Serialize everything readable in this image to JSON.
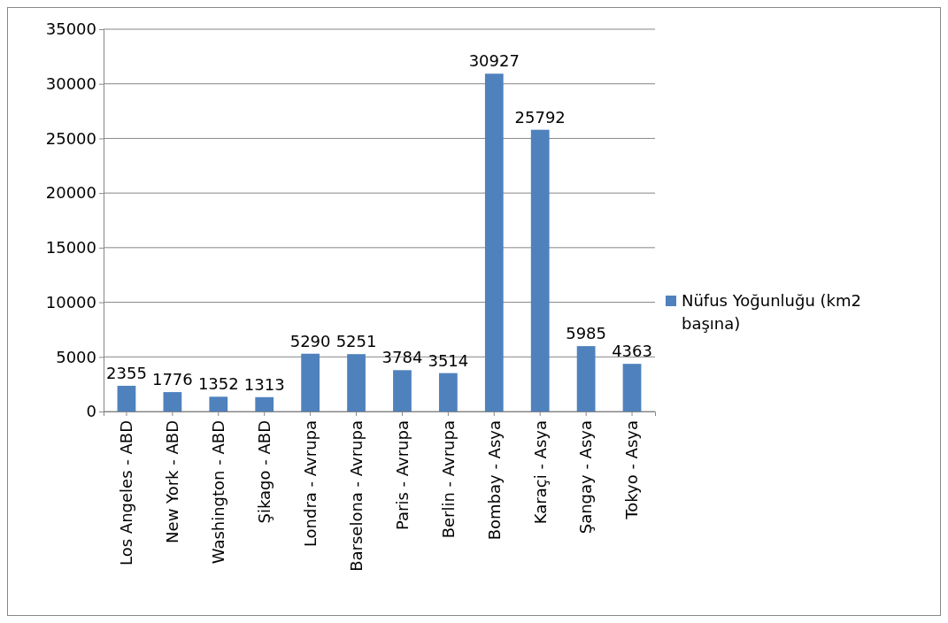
{
  "chart_data": {
    "type": "bar",
    "categories": [
      "Los Angeles - ABD",
      "New York - ABD",
      "Washington - ABD",
      "Şikago - ABD",
      "Londra - Avrupa",
      "Barselona - Avrupa",
      "Paris - Avrupa",
      "Berlin - Avrupa",
      "Bombay - Asya",
      "Karaçi - Asya",
      "Şangay - Asya",
      "Tokyo - Asya"
    ],
    "series": [
      {
        "name": "Nüfus Yoğunluğu (km2 başına)",
        "color": "#4f81bd",
        "values": [
          2355,
          1776,
          1352,
          1313,
          5290,
          5251,
          3784,
          3514,
          30927,
          25792,
          5985,
          4363
        ]
      }
    ],
    "ylim": [
      0,
      35000
    ],
    "yticks": [
      0,
      5000,
      10000,
      15000,
      20000,
      25000,
      30000,
      35000
    ],
    "grid": "y",
    "legend": "right",
    "data_labels": true
  }
}
